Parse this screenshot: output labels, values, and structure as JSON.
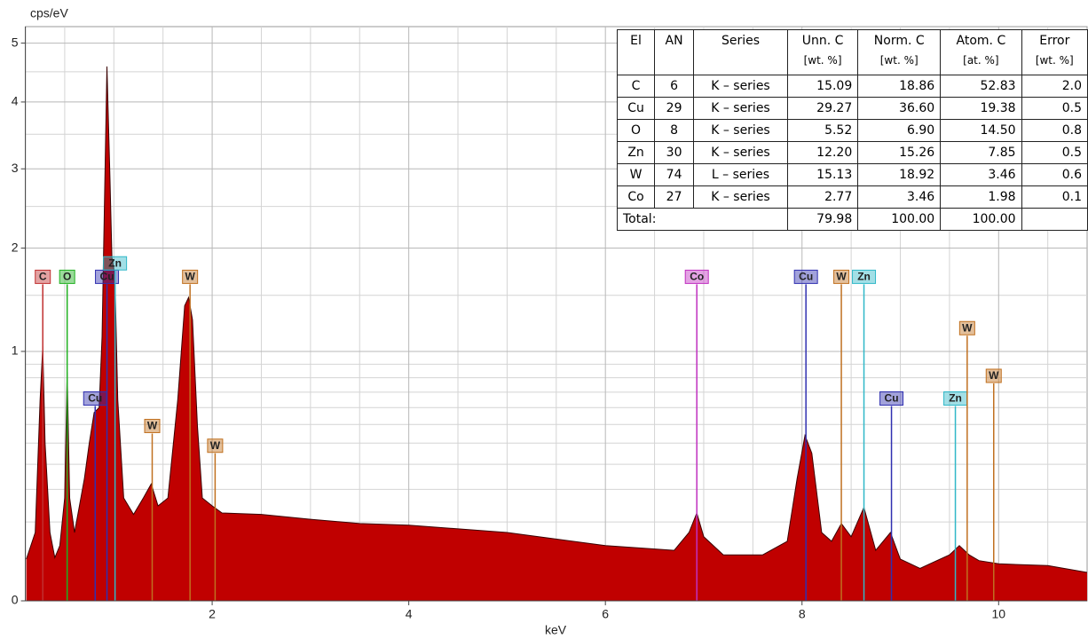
{
  "chart_data": {
    "type": "area",
    "y_label": "cps/eV",
    "x_label": "keV",
    "xlim": [
      0.1,
      10.9
    ],
    "ylim": [
      0,
      5.3
    ],
    "yscale": "sqrt",
    "xticks": [
      2,
      4,
      6,
      8,
      10
    ],
    "yticks": [
      0,
      1,
      2,
      3,
      4,
      5
    ],
    "xminor": [
      0.5,
      1,
      1.5,
      2.5,
      3,
      3.5,
      4.5,
      5,
      5.5,
      6.5,
      7,
      7.5,
      8.5,
      9,
      9.5,
      10.5
    ],
    "yminor": [
      0.1,
      0.2,
      0.3,
      0.4,
      0.5,
      0.6,
      0.7,
      0.8,
      0.9,
      1.5,
      2.5,
      3.5,
      4.5
    ],
    "grid": true,
    "color": "#c00000",
    "x": [
      0.11,
      0.2,
      0.25,
      0.277,
      0.3,
      0.35,
      0.4,
      0.45,
      0.5,
      0.525,
      0.55,
      0.6,
      0.65,
      0.7,
      0.75,
      0.8,
      0.85,
      0.88,
      0.93,
      0.96,
      0.98,
      1.01,
      1.04,
      1.1,
      1.2,
      1.3,
      1.38,
      1.45,
      1.55,
      1.65,
      1.72,
      1.76,
      1.8,
      1.85,
      1.9,
      2.0,
      2.1,
      2.5,
      3,
      3.5,
      4,
      5,
      6,
      6.7,
      6.85,
      6.93,
      7.0,
      7.2,
      7.6,
      7.85,
      7.95,
      8.03,
      8.1,
      8.2,
      8.3,
      8.4,
      8.5,
      8.63,
      8.75,
      8.9,
      9.0,
      9.2,
      9.5,
      9.6,
      9.7,
      9.8,
      10.0,
      10.5,
      10.9
    ],
    "values": [
      0.028,
      0.075,
      0.65,
      1.04,
      0.4,
      0.075,
      0.03,
      0.049,
      0.17,
      0.84,
      0.17,
      0.075,
      0.145,
      0.24,
      0.4,
      0.57,
      0.6,
      1.12,
      4.59,
      2.88,
      1.9,
      1.71,
      0.65,
      0.17,
      0.12,
      0.17,
      0.22,
      0.145,
      0.17,
      0.65,
      1.4,
      1.48,
      1.27,
      0.49,
      0.17,
      0.145,
      0.124,
      0.12,
      0.107,
      0.096,
      0.092,
      0.075,
      0.049,
      0.041,
      0.075,
      0.124,
      0.066,
      0.034,
      0.034,
      0.057,
      0.24,
      0.44,
      0.35,
      0.075,
      0.057,
      0.096,
      0.066,
      0.14,
      0.041,
      0.075,
      0.028,
      0.017,
      0.034,
      0.049,
      0.034,
      0.026,
      0.022,
      0.02,
      0.013
    ],
    "markers": [
      {
        "label": "C",
        "energy": 0.277,
        "height": 1.61,
        "color": "#c03030"
      },
      {
        "label": "O",
        "energy": 0.525,
        "height": 1.61,
        "color": "#20b020"
      },
      {
        "label": "Cu",
        "energy": 0.93,
        "height": 1.61,
        "color": "#3030b0"
      },
      {
        "label": "Zn",
        "energy": 1.012,
        "height": 1.75,
        "color": "#30b8c8"
      },
      {
        "label": "Cu",
        "energy": 0.81,
        "height": 0.61,
        "color": "#3030b0"
      },
      {
        "label": "W",
        "energy": 1.39,
        "height": 0.45,
        "color": "#c07020"
      },
      {
        "label": "W",
        "energy": 1.775,
        "height": 1.61,
        "color": "#c07020"
      },
      {
        "label": "W",
        "energy": 2.03,
        "height": 0.35,
        "color": "#c07020"
      },
      {
        "label": "Co",
        "energy": 6.93,
        "height": 1.61,
        "color": "#c030c0"
      },
      {
        "label": "Cu",
        "energy": 8.04,
        "height": 1.61,
        "color": "#3030b0"
      },
      {
        "label": "W",
        "energy": 8.4,
        "height": 1.61,
        "color": "#c07020"
      },
      {
        "label": "Zn",
        "energy": 8.63,
        "height": 1.61,
        "color": "#30b8c8"
      },
      {
        "label": "Cu",
        "energy": 8.91,
        "height": 0.61,
        "color": "#3030b0"
      },
      {
        "label": "Zn",
        "energy": 9.56,
        "height": 0.61,
        "color": "#30b8c8"
      },
      {
        "label": "W",
        "energy": 9.68,
        "height": 1.13,
        "color": "#c07020"
      },
      {
        "label": "W",
        "energy": 9.95,
        "height": 0.76,
        "color": "#c07020"
      }
    ]
  },
  "table": {
    "headers": [
      [
        "El"
      ],
      [
        "AN"
      ],
      [
        "Series"
      ],
      [
        "Unn. C",
        "[wt. %]"
      ],
      [
        "Norm. C",
        "[wt. %]"
      ],
      [
        "Atom. C",
        "[at. %]"
      ],
      [
        "Error",
        "[wt. %]"
      ]
    ],
    "rows": [
      [
        "C",
        "6",
        "K – series",
        "15.09",
        "18.86",
        "52.83",
        "2.0"
      ],
      [
        "Cu",
        "29",
        "K – series",
        "29.27",
        "36.60",
        "19.38",
        "0.5"
      ],
      [
        "O",
        "8",
        "K – series",
        "5.52",
        "6.90",
        "14.50",
        "0.8"
      ],
      [
        "Zn",
        "30",
        "K – series",
        "12.20",
        "15.26",
        "7.85",
        "0.5"
      ],
      [
        "W",
        "74",
        "L – series",
        "15.13",
        "18.92",
        "3.46",
        "0.6"
      ],
      [
        "Co",
        "27",
        "K – series",
        "2.77",
        "3.46",
        "1.98",
        "0.1"
      ]
    ],
    "total": [
      "Total:",
      "79.98",
      "100.00",
      "100.00"
    ]
  }
}
